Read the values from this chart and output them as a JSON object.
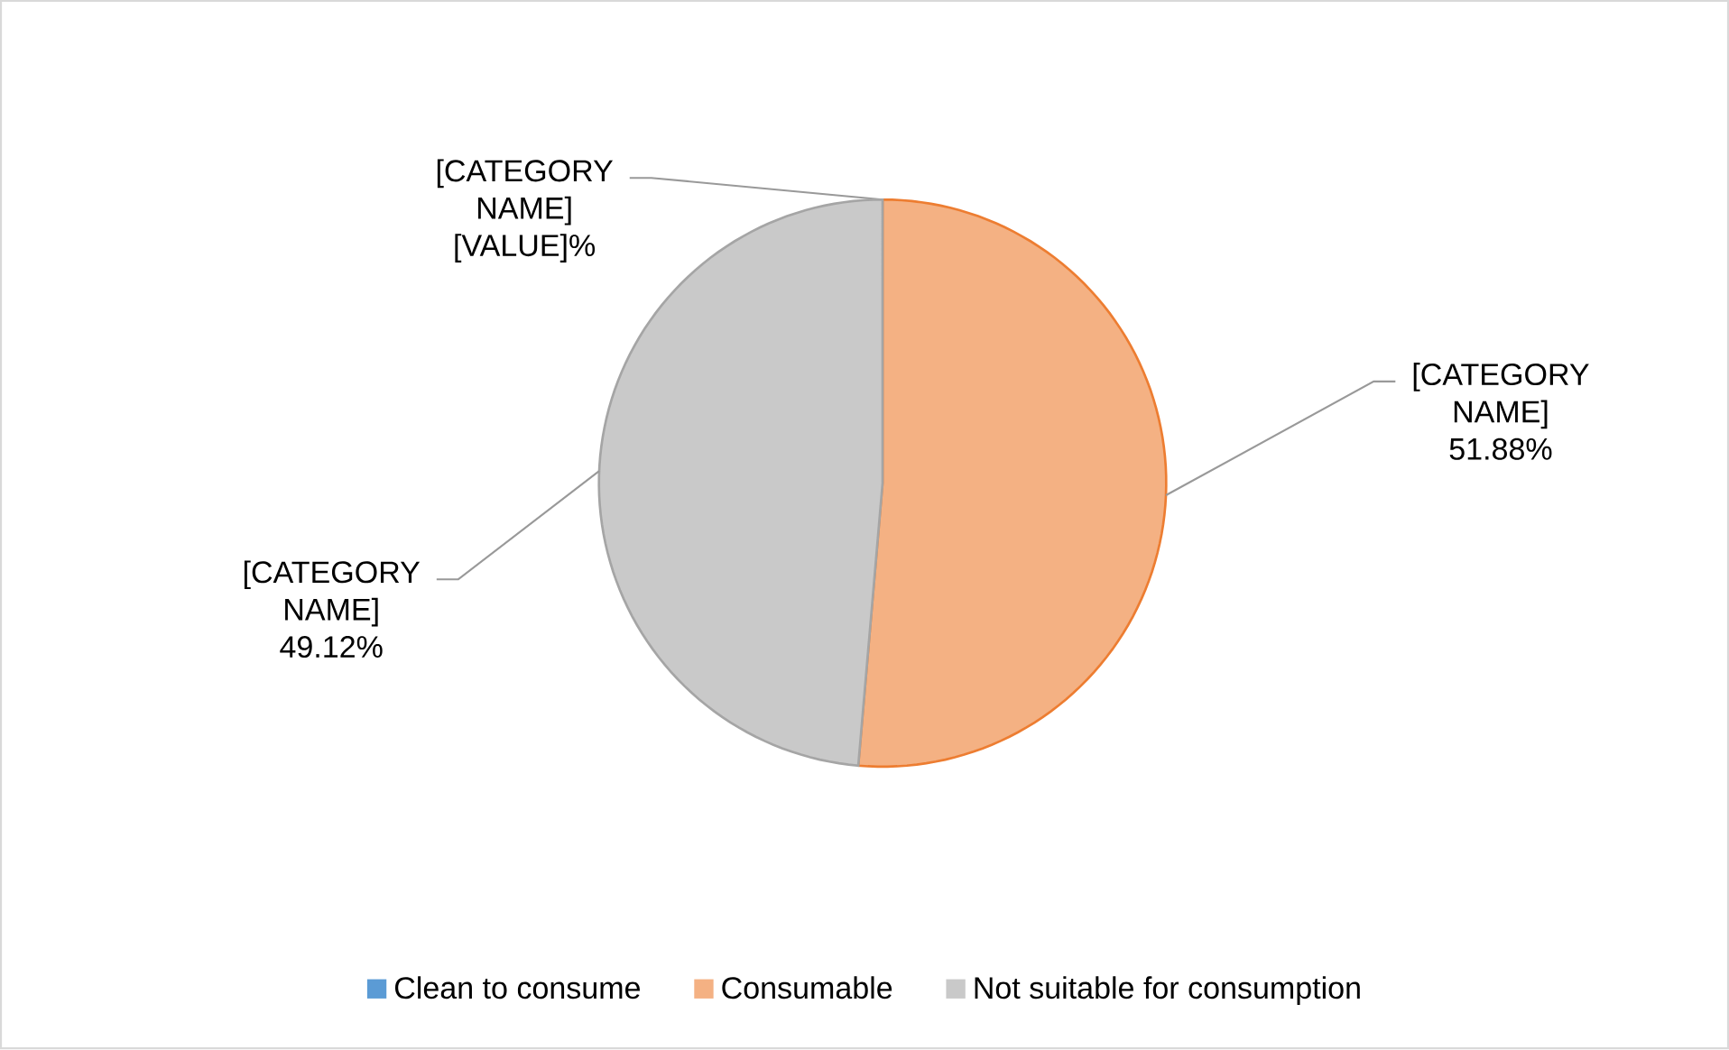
{
  "chart_data": {
    "type": "pie",
    "categories": [
      "Clean to consume",
      "Consumable",
      "Not suitable for consumption"
    ],
    "values": [
      0,
      51.88,
      49.12
    ],
    "colors": [
      "#5b9bd5",
      "#f4b183",
      "#c9c9c9"
    ],
    "value_labels": [
      "[CATEGORY NAME] [VALUE]%",
      "[CATEGORY NAME] 51.88%",
      "[CATEGORY NAME] 49.12%"
    ],
    "legend": "bottom"
  }
}
